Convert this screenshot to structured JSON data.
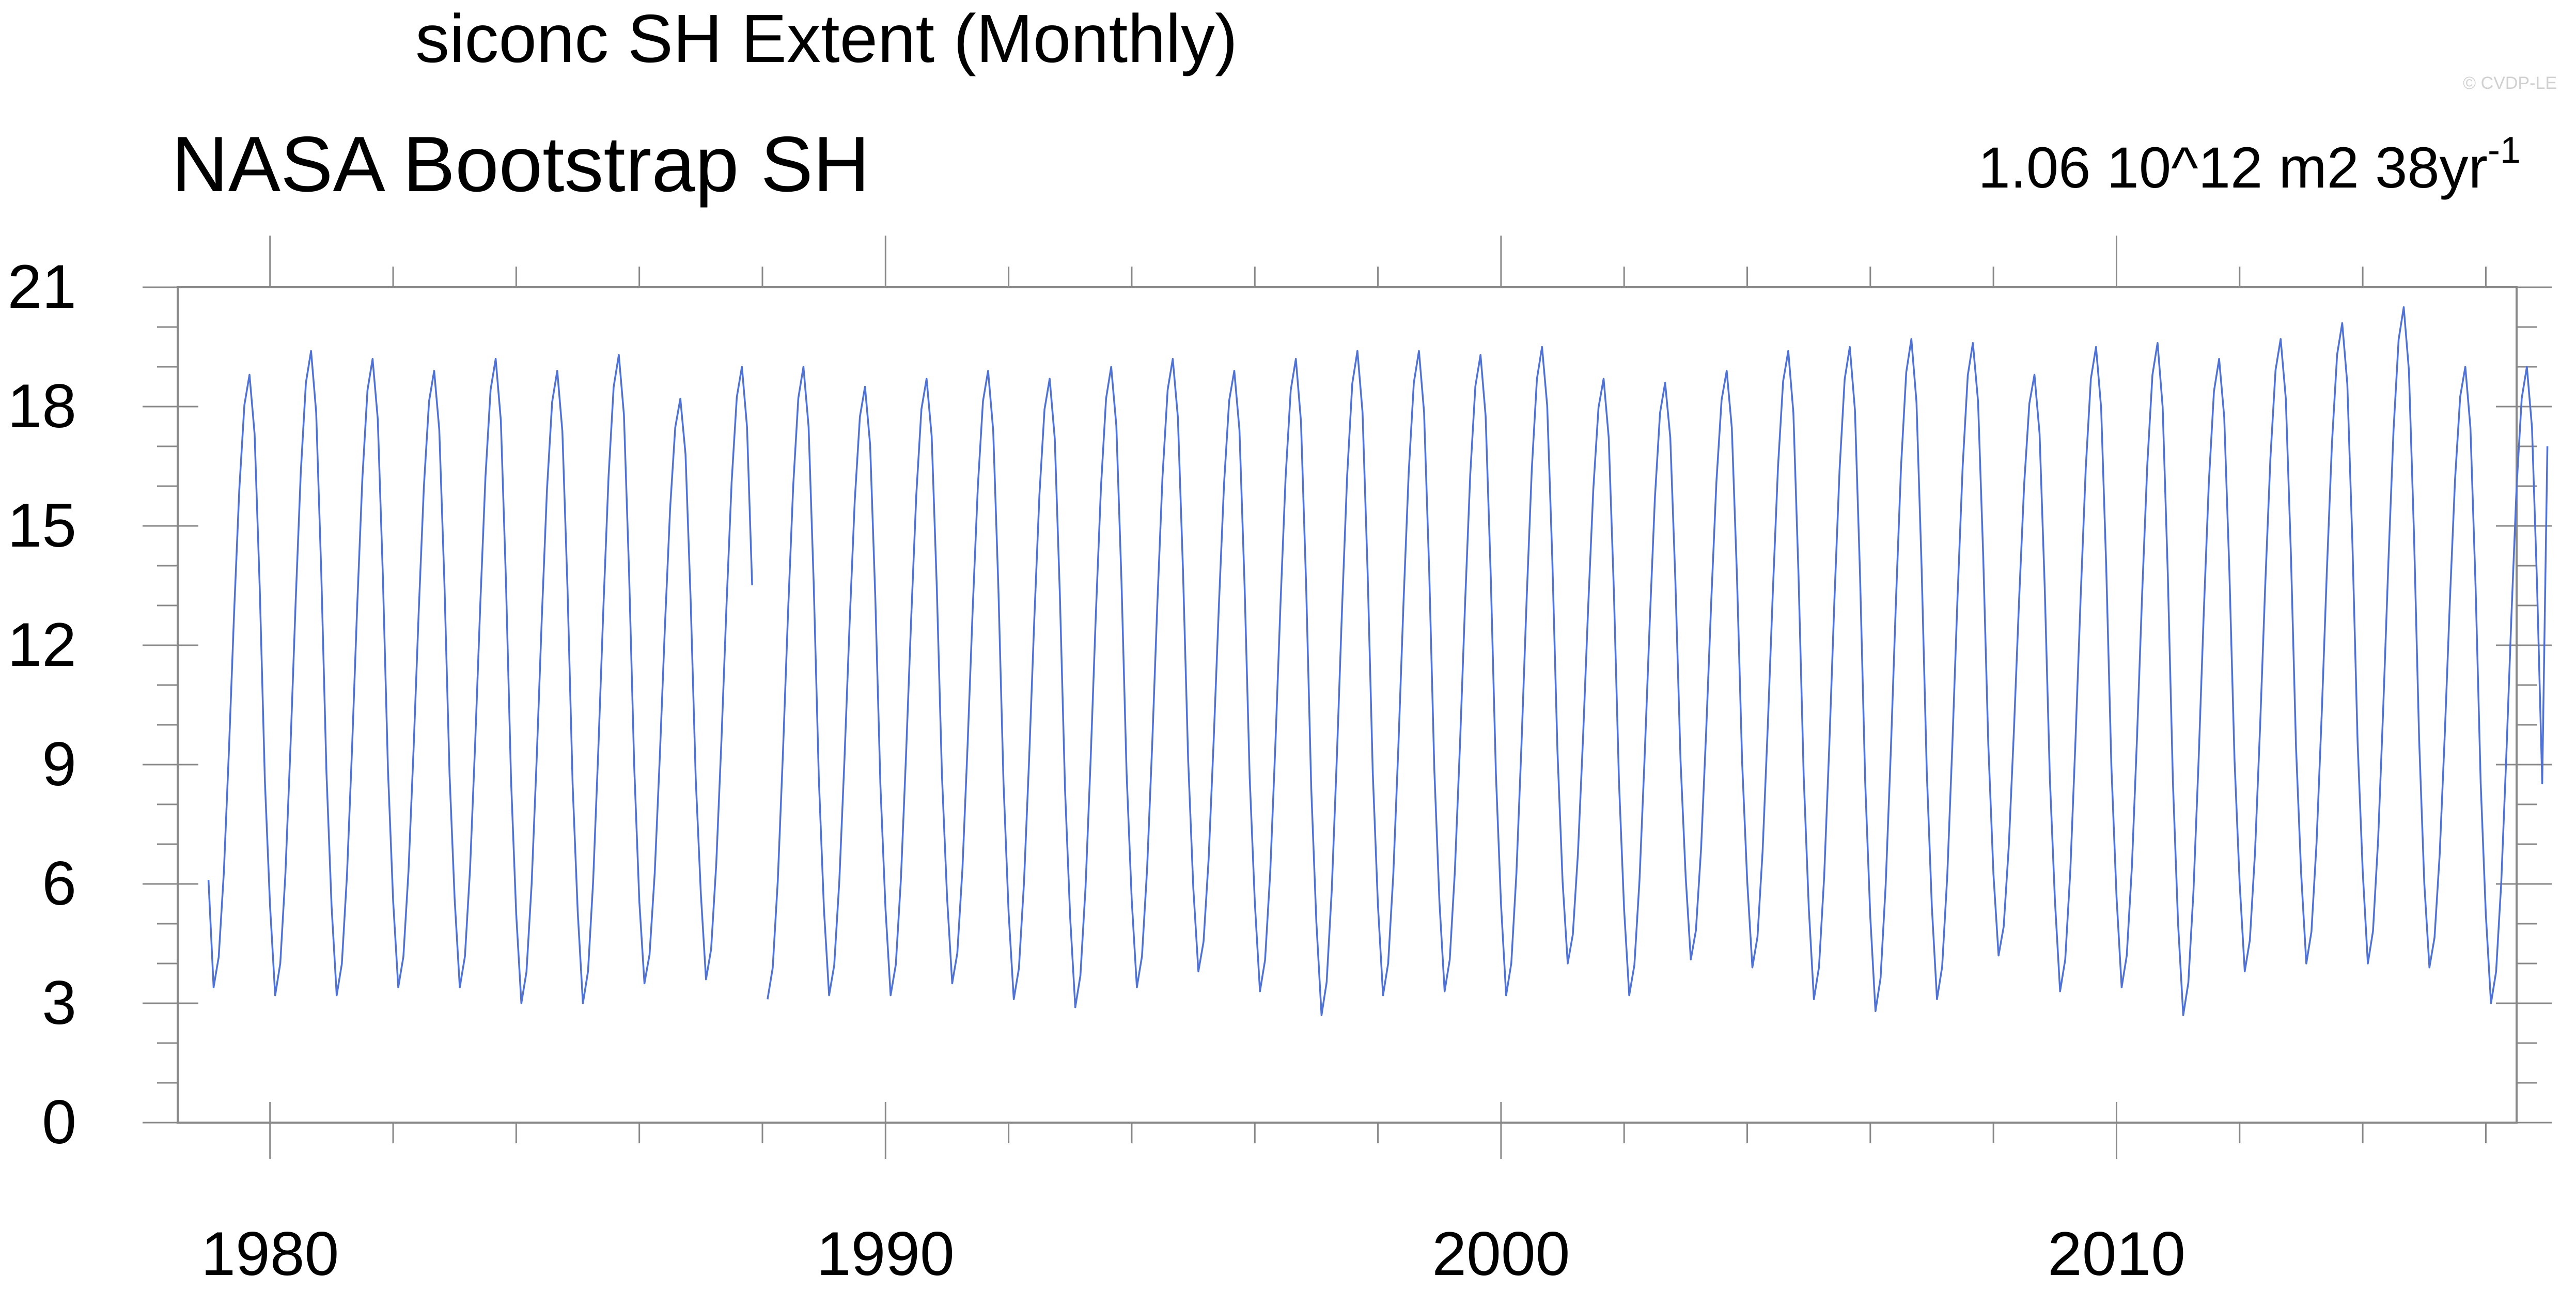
{
  "page": {
    "title": "siconc SH Extent (Monthly)",
    "watermark": "© CVDP-LE"
  },
  "chart_data": {
    "type": "line",
    "title": "siconc SH Extent (Monthly)",
    "subtitle_left": "NASA Bootstrap SH",
    "subtitle_right": "1.06 10^12 m2 38yr",
    "subtitle_right_sup": "-1",
    "xlabel": "",
    "ylabel": "",
    "xlim": [
      1978.5,
      2016.5
    ],
    "ylim": [
      0,
      21
    ],
    "yticks": [
      "0",
      "3",
      "6",
      "9",
      "12",
      "15",
      "18",
      "21"
    ],
    "xticks": [
      "1980",
      "1990",
      "2000",
      "2010"
    ],
    "grid": false,
    "line_color": "#4f72d8",
    "series": [
      {
        "start": "1979-01",
        "peaks": [
          18.8,
          19.4,
          19.2,
          18.9,
          19.2,
          18.9,
          19.3,
          18.2,
          19.0,
          19.0,
          18.5,
          18.7,
          18.9,
          18.7,
          19.0,
          19.2,
          18.9,
          19.2,
          19.4,
          19.4,
          19.3,
          19.5,
          18.7,
          18.6,
          18.9,
          19.4,
          19.5,
          19.7,
          19.6,
          18.8,
          19.5,
          19.6,
          19.2,
          19.7,
          20.1,
          20.5,
          19.0
        ],
        "troughs": [
          3.4,
          3.2,
          3.2,
          3.4,
          3.4,
          3.0,
          3.0,
          3.5,
          3.6,
          3.1,
          3.2,
          3.2,
          3.5,
          3.1,
          2.9,
          3.4,
          3.8,
          3.3,
          2.7,
          3.2,
          3.3,
          3.2,
          4.0,
          3.2,
          4.1,
          3.9,
          3.1,
          2.8,
          3.1,
          4.2,
          3.3,
          3.4,
          2.7,
          3.8,
          4.0,
          4.0,
          3.9,
          3.0
        ],
        "first_value": 6.1,
        "last_value": 17.0,
        "gap": [
          "1987-12",
          "1988-01"
        ]
      }
    ]
  }
}
